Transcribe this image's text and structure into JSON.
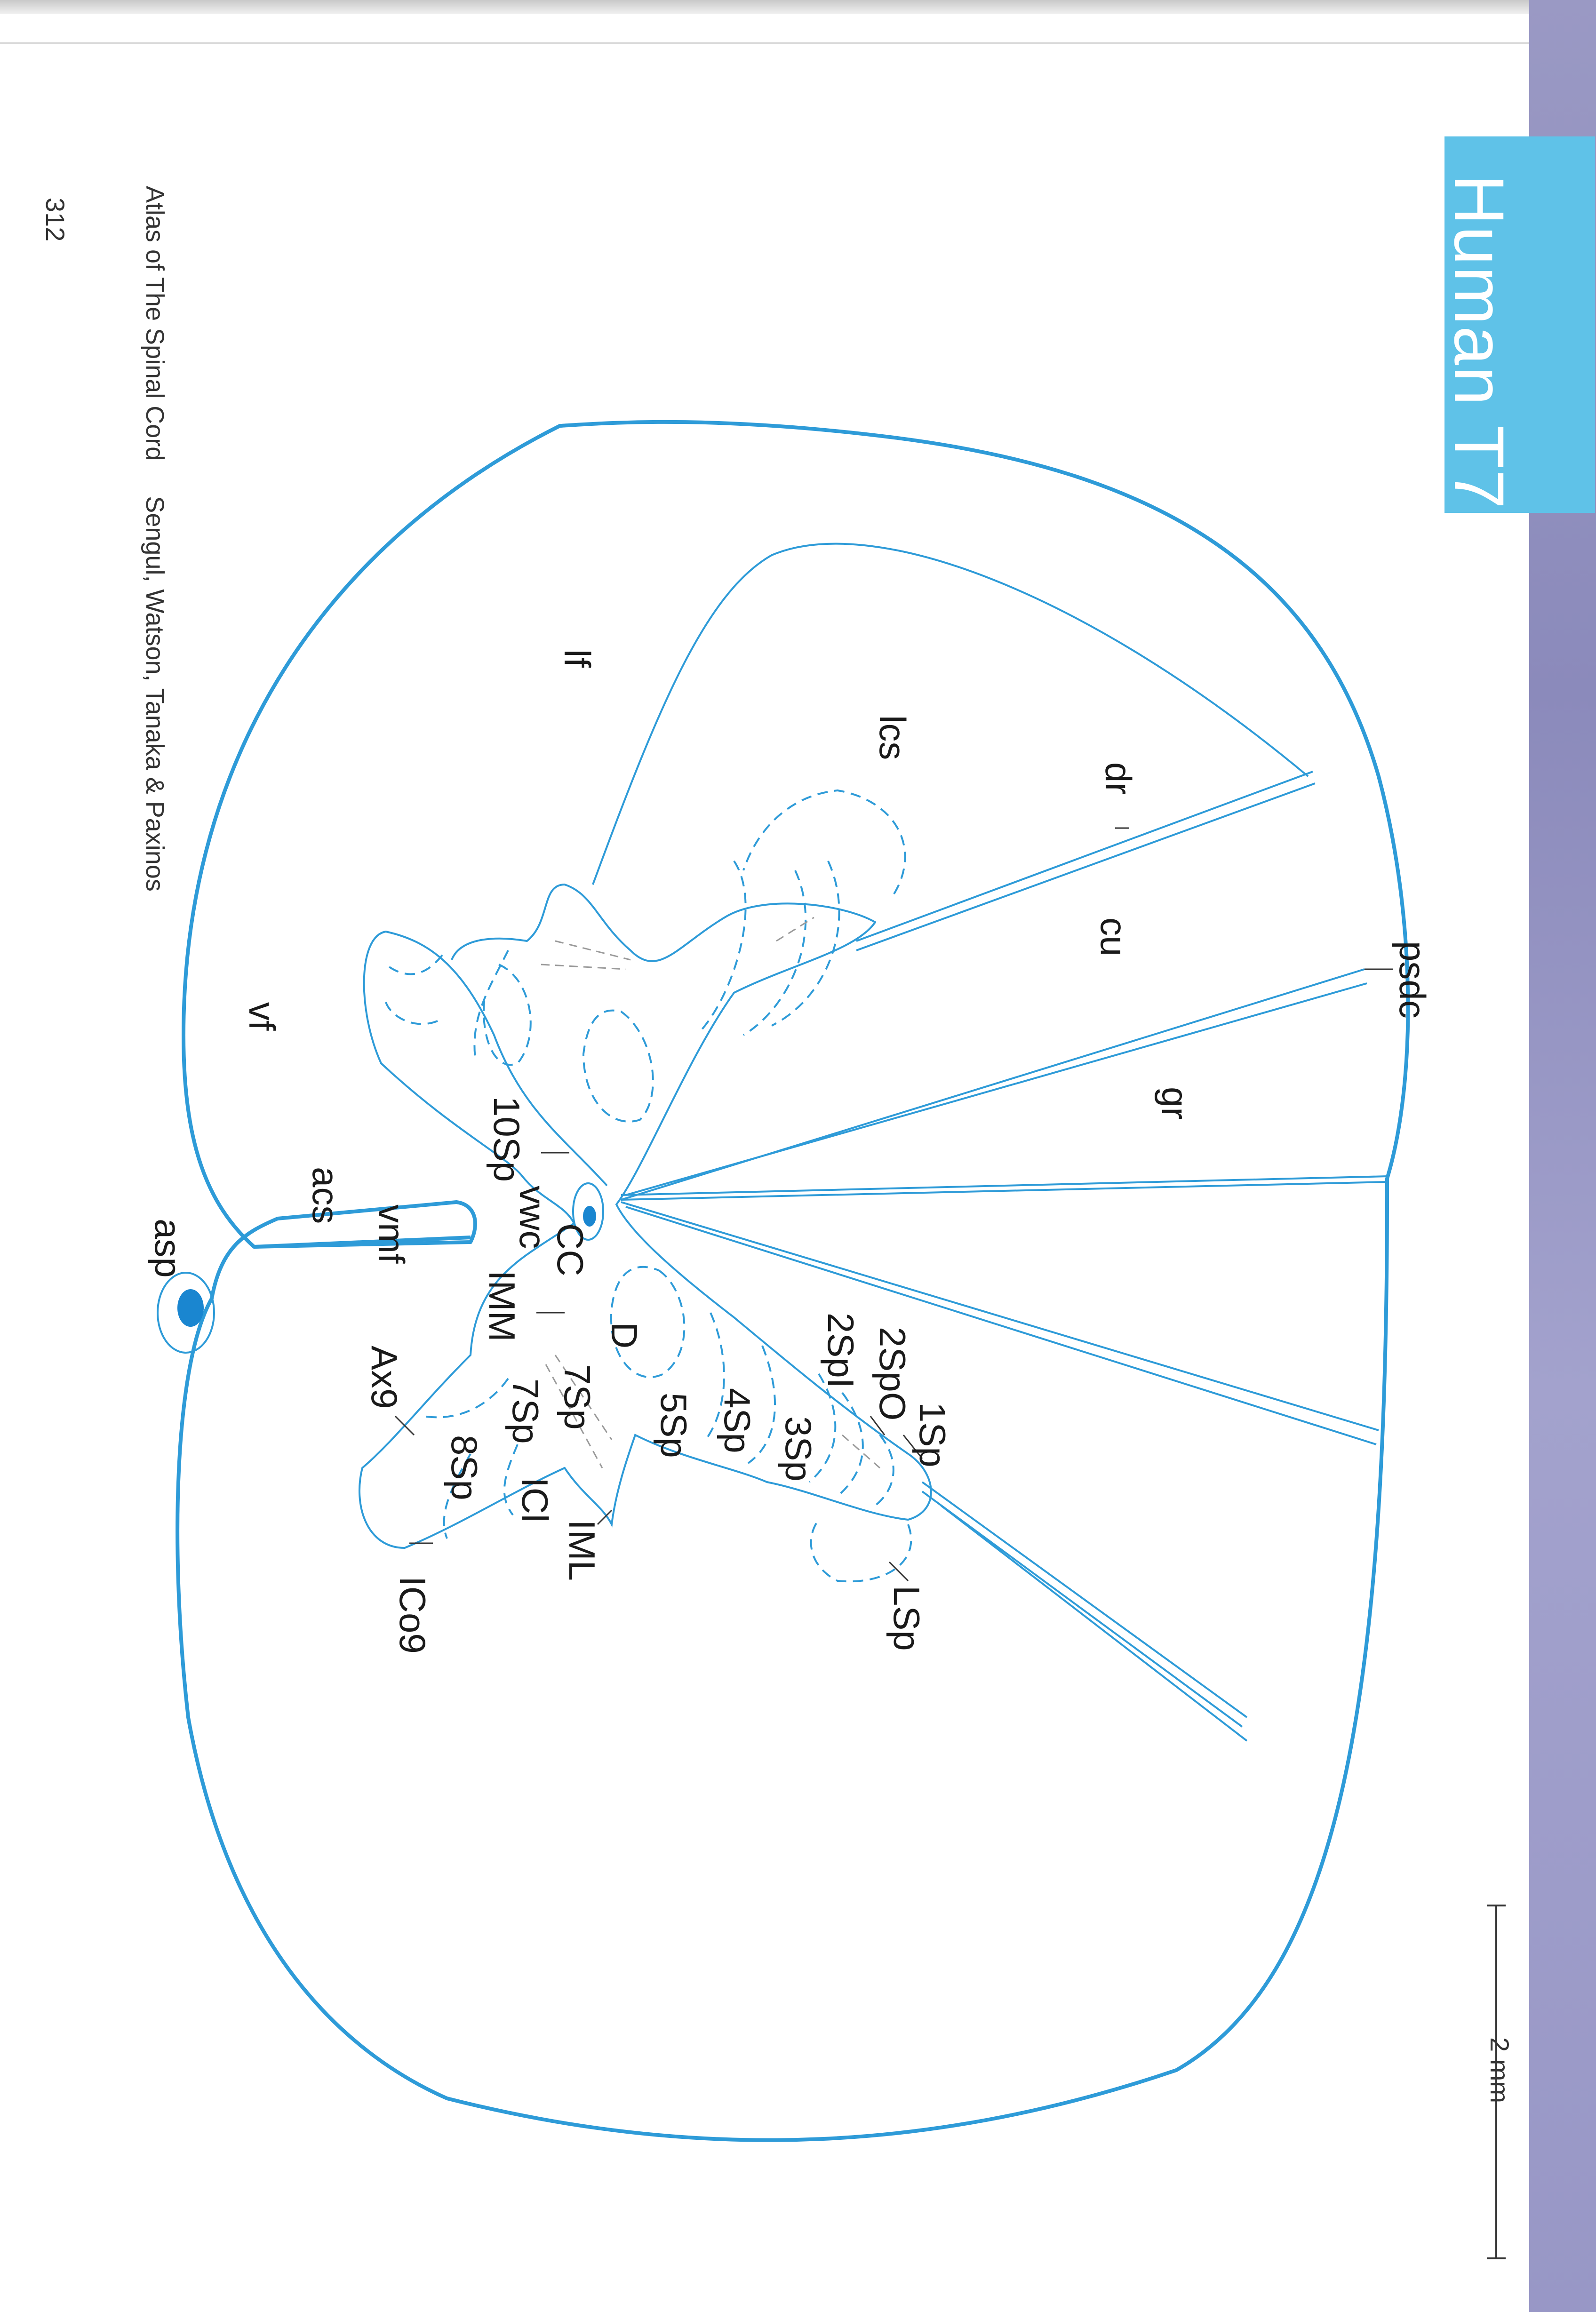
{
  "page": {
    "number": "312",
    "book_title": "Atlas of The Spinal Cord",
    "authors": "Sengul, Watson, Tanaka & Paxinos",
    "tab": "Human T7",
    "scale_bar": "2 mm"
  },
  "colors": {
    "outline": "#2e9bd8",
    "tab": "#5fc2e8",
    "canal_fill": "#1a86d0",
    "lamina_grey": "#9a9a9a"
  },
  "labels": {
    "psdc": "psdc",
    "gr": "gr",
    "cu": "cu",
    "dr": "dr",
    "lcs": "lcs",
    "lf": "lf",
    "vf": "vf",
    "acs": "acs",
    "asp": "asp",
    "vmf": "vmf",
    "vwc": "vwc",
    "CC": "CC",
    "sp10": "10Sp",
    "IMM": "IMM",
    "D": "D",
    "sp1": "1Sp",
    "sp2o": "2SpO",
    "sp2i": "2SpI",
    "sp3": "3Sp",
    "sp4": "4Sp",
    "sp5": "5Sp",
    "sp7a": "7Sp",
    "sp7b": "7Sp",
    "sp8": "8Sp",
    "Ax9": "Ax9",
    "ICo9": "ICo9",
    "IML": "IML",
    "ICl": "ICl",
    "LSp": "LSp"
  }
}
